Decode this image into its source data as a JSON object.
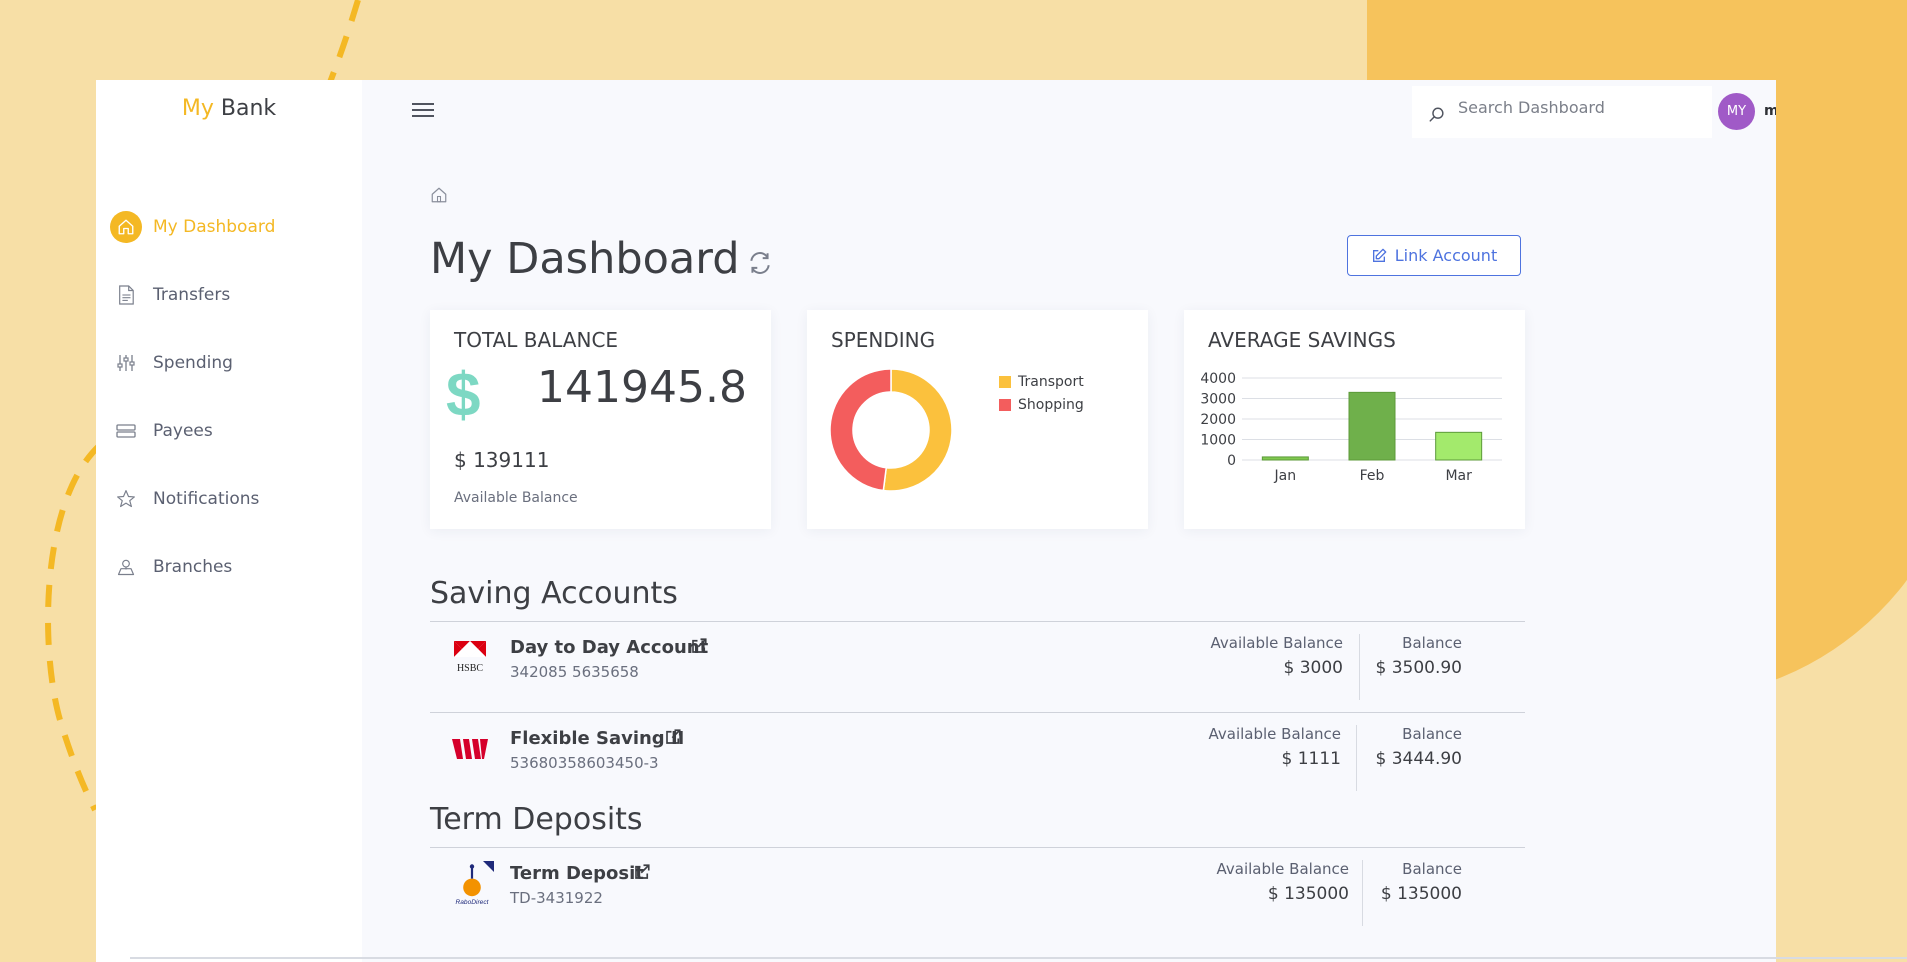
{
  "brand": {
    "part1": "My",
    "part2": "Bank"
  },
  "sidebar": {
    "items": [
      {
        "label": "My Dashboard",
        "icon": "home-icon",
        "active": true
      },
      {
        "label": "Transfers",
        "icon": "document-icon",
        "active": false
      },
      {
        "label": "Spending",
        "icon": "sliders-icon",
        "active": false
      },
      {
        "label": "Payees",
        "icon": "payees-icon",
        "active": false
      },
      {
        "label": "Notifications",
        "icon": "star-icon",
        "active": false
      },
      {
        "label": "Branches",
        "icon": "map-pin-icon",
        "active": false
      }
    ]
  },
  "header": {
    "search_placeholder": "Search Dashboard",
    "user": {
      "initials": "MY",
      "name": "mybanktest"
    }
  },
  "page": {
    "title": "My Dashboard",
    "link_account_label": "Link Account"
  },
  "cards": {
    "total_balance": {
      "title": "TOTAL BALANCE",
      "currency_symbol": "$",
      "amount": "141945.8",
      "available_amount": "$ 139111",
      "available_label": "Available Balance"
    },
    "spending": {
      "title": "SPENDING"
    },
    "average_savings": {
      "title": "AVERAGE SAVINGS"
    }
  },
  "chart_data": [
    {
      "type": "pie",
      "title": "SPENDING",
      "donut": true,
      "categories": [
        "Transport",
        "Shopping"
      ],
      "values": [
        52,
        48
      ],
      "colors": [
        "#fbc13d",
        "#f35d5d"
      ],
      "legend": "right"
    },
    {
      "type": "bar",
      "title": "AVERAGE SAVINGS",
      "categories": [
        "Jan",
        "Feb",
        "Mar"
      ],
      "values": [
        150,
        3300,
        1350
      ],
      "colors": [
        "#80c94f",
        "#6fb04b",
        "#a3ea6c"
      ],
      "y_ticks": [
        "0",
        "1000",
        "2000",
        "3000",
        "4000"
      ],
      "ylim": [
        0,
        4000
      ],
      "grid": true
    }
  ],
  "sections": {
    "saving_accounts": {
      "title": "Saving Accounts",
      "accounts": [
        {
          "name": "Day to Day Account",
          "number": "342085 5635658",
          "logo": "hsbc-logo",
          "logo_text": "HSBC",
          "available_label": "Available Balance",
          "available_value": "$ 3000",
          "balance_label": "Balance",
          "balance_value": "$ 3500.90"
        },
        {
          "name": "Flexible Saving II",
          "number": "53680358603450-3",
          "logo": "westpac-logo",
          "available_label": "Available Balance",
          "available_value": "$ 1111",
          "balance_label": "Balance",
          "balance_value": "$ 3444.90"
        }
      ]
    },
    "term_deposits": {
      "title": "Term Deposits",
      "accounts": [
        {
          "name": "Term Deposit",
          "number": "TD-3431922",
          "logo": "rabodirect-logo",
          "logo_text": "RaboDirect",
          "available_label": "Available Balance",
          "available_value": "$ 135000",
          "balance_label": "Balance",
          "balance_value": "$ 135000"
        }
      ]
    }
  }
}
